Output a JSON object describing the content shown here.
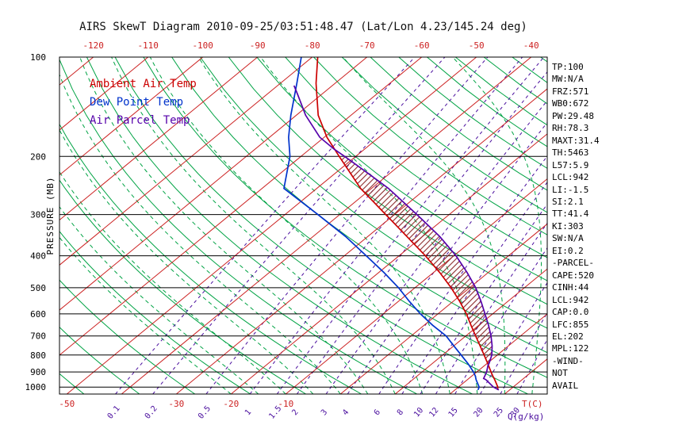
{
  "title": "AIRS SkewT Diagram 2010-09-25/03:51:48.47 (Lat/Lon 4.23/145.24 deg)",
  "colors": {
    "temp": "#cc0000",
    "dewpoint": "#0033cc",
    "parcel": "#5500aa",
    "isotherm": "#cc2222",
    "adiabat": "#00a344",
    "mixing": "#4a0e9e",
    "hatch": "#8b2b2b",
    "axis": "#000000"
  },
  "legend": {
    "items": [
      {
        "key": "temp",
        "label": "Ambient Air Temp"
      },
      {
        "key": "dewpoint",
        "label": "Dew Point Temp"
      },
      {
        "key": "parcel",
        "label": "Air Parcel Temp"
      }
    ]
  },
  "axes": {
    "pressure_label": "PRESSURE (MB)",
    "pressure_ticks": [
      100,
      200,
      300,
      400,
      500,
      600,
      700,
      800,
      900,
      1000
    ],
    "top_temp_ticks": [
      -120,
      -110,
      -100,
      -90,
      -80,
      -70,
      -60,
      -50,
      -40
    ],
    "bottom_temp_ticks": [
      -50,
      -30,
      -20,
      -10
    ],
    "mixing_ticks": [
      0.1,
      0.2,
      0.5,
      1,
      1.5,
      2,
      3,
      4,
      6,
      8,
      10,
      12,
      15,
      20,
      25,
      30
    ],
    "temp_axis_label": "T(C)",
    "mixing_axis_label": "Q(g/kg)"
  },
  "stats": {
    "lines": [
      "TP:100",
      "MW:N/A",
      "FRZ:571",
      "WB0:672",
      "PW:29.48",
      "RH:78.3",
      "MAXT:31.4",
      "TH:5463",
      "L57:5.9",
      "LCL:942",
      "LI:-1.5",
      "SI:2.1",
      "TT:41.4",
      "KI:303",
      "SW:N/A",
      "EI:0.2",
      "-PARCEL-",
      "CAPE:520",
      "CINH:44",
      "LCL:942",
      "CAP:0.0",
      "LFC:855",
      "EL:202",
      "MPL:122",
      "-WIND-",
      "NOT",
      "AVAIL"
    ]
  },
  "chart_data": {
    "type": "line",
    "title": "AIRS SkewT Diagram 2010-09-25/03:51:48.47 (Lat/Lon 4.23/145.24 deg)",
    "xlabel": "T(C)",
    "ylabel": "PRESSURE (MB)",
    "y_scale": "log",
    "y_range": [
      100,
      1050
    ],
    "skewed_isotherms": true,
    "series": [
      {
        "key": "temp",
        "name": "Ambient Air Temp",
        "points": [
          [
            1020,
            27.8
          ],
          [
            1000,
            27.2
          ],
          [
            950,
            25.0
          ],
          [
            925,
            23.8
          ],
          [
            900,
            22.6
          ],
          [
            850,
            20.2
          ],
          [
            800,
            17.6
          ],
          [
            750,
            14.8
          ],
          [
            700,
            11.8
          ],
          [
            650,
            8.6
          ],
          [
            600,
            5.2
          ],
          [
            550,
            1.2
          ],
          [
            500,
            -3.4
          ],
          [
            450,
            -8.8
          ],
          [
            400,
            -15.2
          ],
          [
            350,
            -22.8
          ],
          [
            300,
            -31.6
          ],
          [
            250,
            -42.0
          ],
          [
            200,
            -53.0
          ],
          [
            175,
            -59.5
          ],
          [
            150,
            -66.0
          ],
          [
            120,
            -73.5
          ],
          [
            100,
            -79.0
          ]
        ]
      },
      {
        "key": "dewpoint",
        "name": "Dew Point Temp",
        "points": [
          [
            1020,
            24.2
          ],
          [
            1000,
            23.8
          ],
          [
            950,
            21.6
          ],
          [
            925,
            20.6
          ],
          [
            900,
            19.4
          ],
          [
            850,
            16.6
          ],
          [
            800,
            13.4
          ],
          [
            750,
            10.0
          ],
          [
            700,
            6.4
          ],
          [
            650,
            1.6
          ],
          [
            600,
            -3.2
          ],
          [
            550,
            -8.0
          ],
          [
            500,
            -13.0
          ],
          [
            450,
            -19.0
          ],
          [
            400,
            -26.0
          ],
          [
            350,
            -34.0
          ],
          [
            300,
            -44.0
          ],
          [
            250,
            -56.0
          ],
          [
            200,
            -62.0
          ],
          [
            175,
            -66.5
          ],
          [
            150,
            -71.0
          ],
          [
            120,
            -77.0
          ],
          [
            100,
            -82.0
          ]
        ]
      },
      {
        "key": "parcel",
        "name": "Air Parcel Temp",
        "points": [
          [
            1020,
            28.0
          ],
          [
            1000,
            26.4
          ],
          [
            950,
            23.4
          ],
          [
            942,
            22.7
          ],
          [
            900,
            21.8
          ],
          [
            855,
            20.45
          ],
          [
            850,
            20.4
          ],
          [
            800,
            19.0
          ],
          [
            750,
            17.0
          ],
          [
            700,
            14.6
          ],
          [
            650,
            11.8
          ],
          [
            600,
            8.6
          ],
          [
            550,
            5.1
          ],
          [
            500,
            1.1
          ],
          [
            450,
            -3.8
          ],
          [
            400,
            -9.6
          ],
          [
            350,
            -16.8
          ],
          [
            300,
            -25.9
          ],
          [
            250,
            -36.9
          ],
          [
            225,
            -44.0
          ],
          [
            200,
            -52.0
          ],
          [
            190,
            -55.6
          ],
          [
            175,
            -60.8
          ],
          [
            150,
            -68.3
          ],
          [
            130,
            -74.3
          ],
          [
            122,
            -77.0
          ]
        ]
      }
    ],
    "background": {
      "isotherms_C": {
        "min": -160,
        "max": 40,
        "step": 10
      },
      "dry_adiabats_C": {
        "min": -50,
        "max": 190,
        "step": 10
      },
      "moist_adiabats_C": {
        "min": -20,
        "max": 40,
        "step": 5
      },
      "mixing_ratio_g_kg": [
        0.1,
        0.2,
        0.5,
        1,
        1.5,
        2,
        3,
        4,
        6,
        8,
        10,
        12,
        15,
        20,
        25,
        30
      ]
    },
    "hatch_region": {
      "between": [
        "parcel",
        "temp"
      ],
      "pressure_range": [
        200,
        855
      ]
    }
  }
}
